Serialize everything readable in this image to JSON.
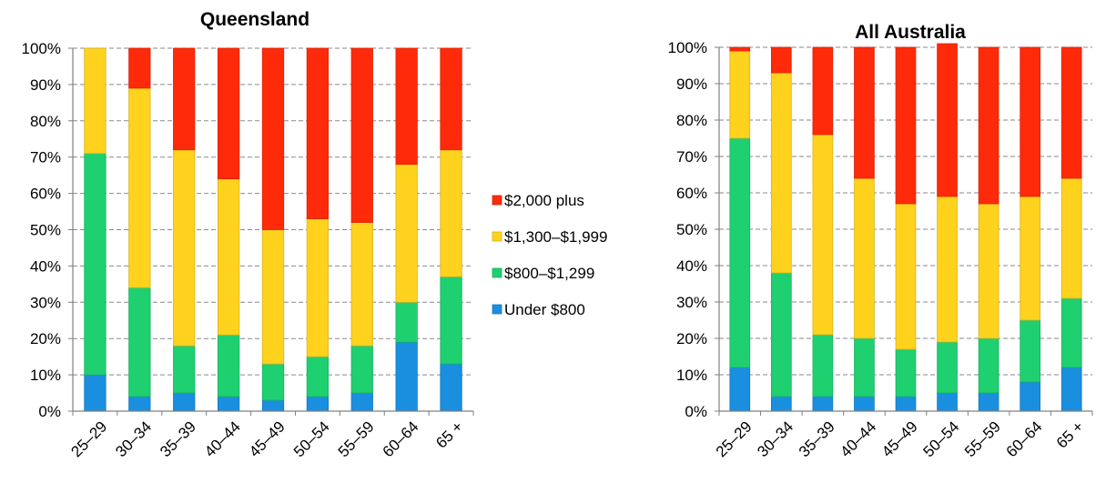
{
  "chart_data": [
    {
      "type": "bar",
      "stacked": true,
      "normalized": true,
      "title": "Queensland",
      "categories": [
        "25–29",
        "30–34",
        "35–39",
        "40–44",
        "45–49",
        "50–54",
        "55–59",
        "60–64",
        "65 +"
      ],
      "ylim": [
        0,
        100
      ],
      "yticks": [
        "0%",
        "10%",
        "20%",
        "30%",
        "40%",
        "50%",
        "60%",
        "70%",
        "80%",
        "90%",
        "100%"
      ],
      "grid": true,
      "series": [
        {
          "name": "Under $800",
          "color": "#1a8fe0",
          "values": [
            10,
            4,
            5,
            4,
            3,
            4,
            5,
            19,
            13
          ]
        },
        {
          "name": "$800–$1,299",
          "color": "#1fd070",
          "values": [
            61,
            30,
            13,
            17,
            10,
            11,
            13,
            11,
            24
          ]
        },
        {
          "name": "$1,300–$1,999",
          "color": "#ffd21e",
          "values": [
            29,
            55,
            54,
            43,
            37,
            38,
            34,
            38,
            35
          ]
        },
        {
          "name": "$2,000 plus",
          "color": "#ff2a0a",
          "values": [
            0,
            11,
            28,
            36,
            50,
            47,
            48,
            32,
            28
          ]
        }
      ]
    },
    {
      "type": "bar",
      "stacked": true,
      "normalized": true,
      "title": "All Australia",
      "categories": [
        "25–29",
        "30–34",
        "35–39",
        "40–44",
        "45–49",
        "50–54",
        "55–59",
        "60–64",
        "65 +"
      ],
      "ylim": [
        0,
        100
      ],
      "yticks": [
        "0%",
        "10%",
        "20%",
        "30%",
        "40%",
        "50%",
        "60%",
        "70%",
        "80%",
        "90%",
        "100%"
      ],
      "grid": true,
      "series": [
        {
          "name": "Under $800",
          "color": "#1a8fe0",
          "values": [
            12,
            4,
            4,
            4,
            4,
            5,
            5,
            8,
            12
          ]
        },
        {
          "name": "$800–$1,299",
          "color": "#1fd070",
          "values": [
            63,
            34,
            17,
            16,
            13,
            14,
            15,
            17,
            19
          ]
        },
        {
          "name": "$1,300–$1,999",
          "color": "#ffd21e",
          "values": [
            24,
            55,
            55,
            44,
            40,
            40,
            37,
            34,
            33
          ]
        },
        {
          "name": "$2,000 plus",
          "color": "#ff2a0a",
          "values": [
            1,
            7,
            24,
            36,
            43,
            42,
            43,
            41,
            36
          ]
        }
      ]
    }
  ],
  "legend": {
    "position": "between-charts",
    "items": [
      {
        "name": "$2,000 plus",
        "color": "#ff2a0a"
      },
      {
        "name": "$1,300–$1,999",
        "color": "#ffd21e"
      },
      {
        "name": "$800–$1,299",
        "color": "#1fd070"
      },
      {
        "name": "Under $800",
        "color": "#1a8fe0"
      }
    ]
  }
}
